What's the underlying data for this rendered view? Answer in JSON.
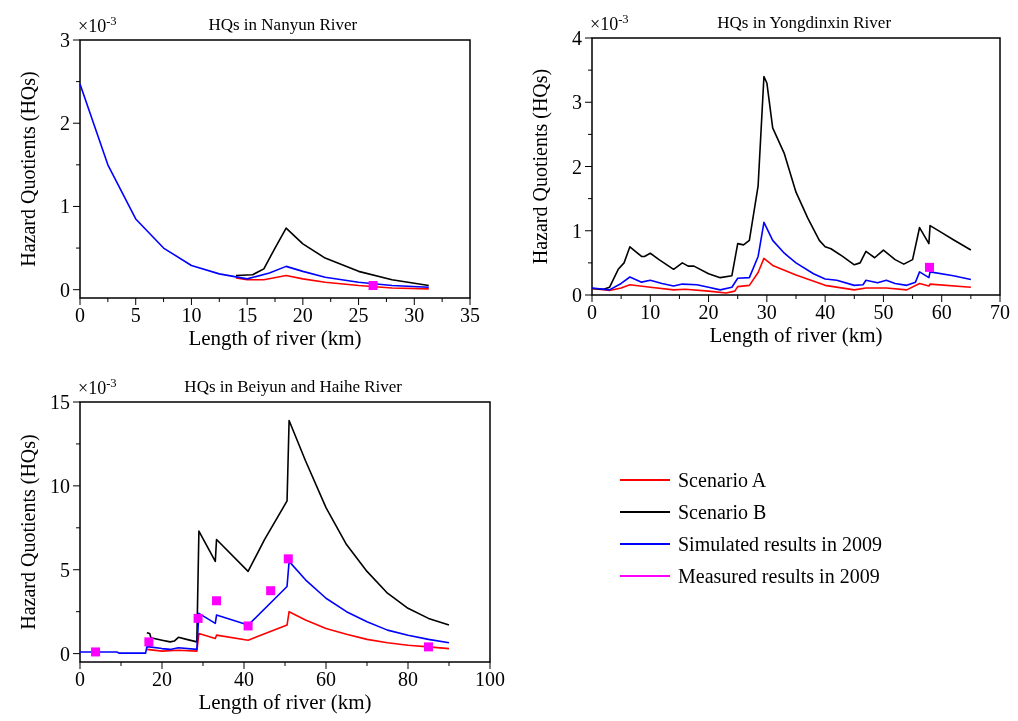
{
  "chart_data": [
    {
      "type": "line",
      "title": "HQs in Nanyun River",
      "xlabel": "Length of river (km)",
      "ylabel": "Hazard Quotients (HQs)",
      "annotations": [
        "×10$^{-3}$"
      ],
      "xlim": [
        0,
        35
      ],
      "ylim": [
        -0.1,
        3
      ],
      "xticks": [
        0,
        {
          "value": 2.5,
          "label": null
        },
        5,
        {
          "value": 7.5,
          "label": null
        },
        10,
        {
          "value": 12.5,
          "label": null
        },
        15,
        {
          "value": 17.5,
          "label": null
        },
        20,
        {
          "value": 22.5,
          "label": null
        },
        25,
        {
          "value": 27.5,
          "label": null
        },
        30,
        {
          "value": 32.5,
          "label": null
        },
        35
      ],
      "yticks": [
        0,
        {
          "value": 0.5,
          "label": null
        },
        1,
        {
          "value": 1.5,
          "label": null
        },
        2,
        {
          "value": 2.5,
          "label": null
        },
        3
      ],
      "legend": false,
      "marker": "none",
      "line_style": "solid",
      "series": [
        {
          "color": "#ff0000",
          "x": [
            14,
            15,
            16.5,
            18.5,
            20,
            22,
            25,
            28,
            31.3
          ],
          "values": [
            0.14,
            0.12,
            0.12,
            0.17,
            0.13,
            0.09,
            0.05,
            0.02,
            0.01
          ]
        },
        {
          "color": "#000000",
          "x": [
            14,
            15.5,
            16.5,
            17.5,
            18.5,
            20,
            22,
            25,
            28,
            31.3
          ],
          "values": [
            0.17,
            0.18,
            0.25,
            0.5,
            0.74,
            0.55,
            0.38,
            0.22,
            0.12,
            0.05
          ]
        },
        {
          "color": "#0000ff",
          "x": [
            0,
            2.5,
            5,
            7.5,
            10,
            12.5,
            15,
            17,
            18.5,
            20,
            22,
            25,
            28,
            31.3
          ],
          "values": [
            2.47,
            1.5,
            0.85,
            0.5,
            0.29,
            0.19,
            0.13,
            0.2,
            0.28,
            0.22,
            0.15,
            0.09,
            0.05,
            0.03
          ]
        },
        {
          "type": "scatter",
          "marker": "square",
          "color": "#ff00ff",
          "x": [
            26.3
          ],
          "values": [
            0.05
          ]
        }
      ]
    },
    {
      "type": "line",
      "title": "HQs in Yongdinxin River",
      "xlabel": "Length of river (km)",
      "ylabel": "Hazard Quotients (HQs)",
      "annotations": [
        "×10$^{-3}$"
      ],
      "xlim": [
        0,
        70
      ],
      "ylim": [
        0,
        4
      ],
      "xticks": [
        0,
        {
          "value": 5,
          "label": null
        },
        10,
        {
          "value": 15,
          "label": null
        },
        20,
        {
          "value": 25,
          "label": null
        },
        30,
        {
          "value": 35,
          "label": null
        },
        40,
        {
          "value": 45,
          "label": null
        },
        50,
        {
          "value": 55,
          "label": null
        },
        60,
        {
          "value": 65,
          "label": null
        },
        70
      ],
      "yticks": [
        0,
        {
          "value": 0.5,
          "label": null
        },
        1,
        {
          "value": 1.5,
          "label": null
        },
        2,
        {
          "value": 2.5,
          "label": null
        },
        3,
        {
          "value": 3.5,
          "label": null
        },
        4
      ],
      "legend": false,
      "marker": "none",
      "line_style": "solid",
      "series": [
        {
          "color": "#ff0000",
          "x": [
            0,
            3,
            5,
            6.5,
            10,
            14,
            16,
            20,
            23,
            24.5,
            25,
            27,
            28.5,
            29.5,
            31,
            35,
            40,
            45,
            47,
            50.5,
            54,
            56.2,
            57.8,
            58,
            65
          ],
          "values": [
            0.1,
            0.07,
            0.11,
            0.16,
            0.12,
            0.08,
            0.09,
            0.06,
            0.03,
            0.06,
            0.13,
            0.15,
            0.35,
            0.57,
            0.46,
            0.31,
            0.15,
            0.08,
            0.11,
            0.11,
            0.08,
            0.18,
            0.14,
            0.17,
            0.12
          ]
        },
        {
          "color": "#000000",
          "x": [
            0,
            2,
            3,
            4.5,
            5.5,
            6.5,
            8.5,
            9,
            10,
            11.5,
            14,
            15.5,
            16.5,
            17.5,
            20,
            22,
            24,
            25,
            26,
            27,
            28.5,
            29.5,
            30,
            31,
            33,
            35,
            37,
            39,
            40,
            41,
            43,
            45,
            46,
            47,
            48.5,
            50,
            52,
            53.5,
            55,
            56.2,
            57.8,
            58,
            60,
            62,
            65
          ],
          "values": [
            0.1,
            0.09,
            0.12,
            0.4,
            0.5,
            0.75,
            0.6,
            0.6,
            0.65,
            0.55,
            0.4,
            0.5,
            0.45,
            0.45,
            0.33,
            0.27,
            0.3,
            0.8,
            0.78,
            0.85,
            1.7,
            3.4,
            3.3,
            2.6,
            2.2,
            1.6,
            1.2,
            0.85,
            0.75,
            0.72,
            0.6,
            0.47,
            0.5,
            0.68,
            0.58,
            0.7,
            0.55,
            0.48,
            0.55,
            1.05,
            0.8,
            1.08,
            0.97,
            0.86,
            0.7
          ]
        },
        {
          "color": "#0000ff",
          "x": [
            0,
            3,
            5,
            6.5,
            8.5,
            10,
            12,
            14,
            15.5,
            18,
            20,
            22,
            24,
            25,
            27,
            28.5,
            29.5,
            31,
            33,
            35,
            38,
            40,
            42,
            45,
            46.5,
            47,
            49,
            50.5,
            52,
            54,
            55.5,
            56.2,
            57.8,
            58,
            62,
            65
          ],
          "values": [
            0.11,
            0.08,
            0.18,
            0.28,
            0.2,
            0.23,
            0.18,
            0.14,
            0.17,
            0.16,
            0.12,
            0.08,
            0.12,
            0.26,
            0.27,
            0.6,
            1.13,
            0.85,
            0.65,
            0.5,
            0.33,
            0.25,
            0.23,
            0.15,
            0.16,
            0.23,
            0.19,
            0.23,
            0.18,
            0.15,
            0.2,
            0.36,
            0.27,
            0.36,
            0.3,
            0.24
          ]
        },
        {
          "type": "scatter",
          "marker": "square",
          "color": "#ff00ff",
          "x": [
            57.9
          ],
          "values": [
            0.43
          ]
        }
      ]
    },
    {
      "type": "line",
      "title": "HQs in Beiyun and Haihe River",
      "xlabel": "Length of river (km)",
      "ylabel": "Hazard Quotients (HQs)",
      "annotations": [
        "×10$^{-3}$"
      ],
      "xlim": [
        0,
        100
      ],
      "ylim": [
        -0.5,
        15
      ],
      "xticks": [
        0,
        {
          "value": 10,
          "label": null
        },
        20,
        {
          "value": 30,
          "label": null
        },
        40,
        {
          "value": 50,
          "label": null
        },
        60,
        {
          "value": 70,
          "label": null
        },
        80,
        {
          "value": 90,
          "label": null
        },
        100
      ],
      "yticks": [
        0,
        {
          "value": 2.5,
          "label": null
        },
        5,
        {
          "value": 7.5,
          "label": null
        },
        10,
        {
          "value": 12.5,
          "label": null
        },
        15
      ],
      "legend": "right",
      "marker": "none",
      "line_style": "solid",
      "series": [
        {
          "name": "Scenario A",
          "color": "#ff0000",
          "x": [
            16.3,
            20,
            24,
            28.5,
            29,
            33,
            33.3,
            41,
            50.5,
            51,
            55,
            60,
            65,
            70,
            75,
            80,
            85,
            90
          ],
          "values": [
            0.25,
            0.15,
            0.2,
            0.15,
            1.2,
            0.9,
            1.1,
            0.8,
            1.7,
            2.5,
            2.0,
            1.5,
            1.15,
            0.85,
            0.65,
            0.5,
            0.4,
            0.3
          ]
        },
        {
          "name": "Scenario B",
          "color": "#000000",
          "x": [
            16.3,
            17,
            17.3,
            20,
            22,
            23,
            24,
            26,
            28.5,
            29,
            33,
            33.3,
            41,
            45,
            50.5,
            51,
            55,
            60,
            65,
            70,
            75,
            80,
            85,
            90
          ],
          "values": [
            1.25,
            1.2,
            0.95,
            0.8,
            0.7,
            0.75,
            0.97,
            0.85,
            0.7,
            7.3,
            5.5,
            6.8,
            4.9,
            6.8,
            9.1,
            13.9,
            11.5,
            8.7,
            6.5,
            4.9,
            3.6,
            2.7,
            2.1,
            1.7
          ]
        },
        {
          "name": "Simulated results in 2009",
          "color": "#0000ff",
          "x": [
            0,
            9,
            9.5,
            16,
            16.3,
            17,
            20,
            22,
            24,
            28.5,
            29,
            33,
            33.3,
            41,
            50.5,
            51,
            55,
            60,
            65,
            70,
            75,
            80,
            85,
            90
          ],
          "values": [
            0.1,
            0.1,
            0.03,
            0.03,
            0.4,
            0.4,
            0.3,
            0.25,
            0.35,
            0.25,
            2.4,
            1.8,
            2.3,
            1.7,
            4.0,
            5.5,
            4.4,
            3.3,
            2.5,
            1.9,
            1.4,
            1.1,
            0.85,
            0.65
          ]
        },
        {
          "name": "Measured results in 2009",
          "type": "scatter",
          "marker": "square",
          "color": "#ff00ff",
          "x": [
            3.8,
            16.8,
            28.8,
            33.3,
            41,
            46.5,
            50.8,
            85
          ],
          "values": [
            0.1,
            0.7,
            2.1,
            3.15,
            1.65,
            3.75,
            5.65,
            0.4
          ]
        }
      ]
    }
  ]
}
